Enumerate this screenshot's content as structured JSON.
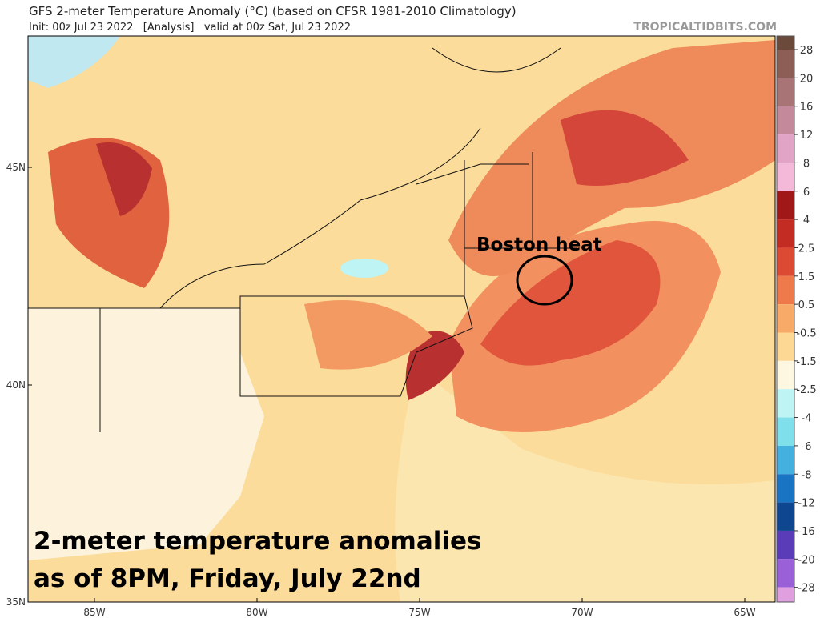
{
  "header": {
    "title": "GFS 2-meter Temperature Anomaly (°C) (based on CFSR 1981-2010 Climatology)",
    "init": "Init: 00z Jul 23 2022   [Analysis]   valid at 00z Sat, Jul 23 2022",
    "site": "TROPICALTIDBITS.COM"
  },
  "map": {
    "lat_labels": [
      "45N",
      "40N",
      "35N"
    ],
    "lon_labels": [
      "85W",
      "80W",
      "75W",
      "70W",
      "65W"
    ],
    "callout": "Boston heat",
    "caption": [
      "2-meter temperature anomalies",
      "as of 8PM, Friday, July 22nd"
    ]
  },
  "colorbar": {
    "labels": [
      "28",
      "20",
      "16",
      "12",
      "8",
      "6",
      "4",
      "2.5",
      "1.5",
      "0.5",
      "-0.5",
      "-1.5",
      "-2.5",
      "-4",
      "-6",
      "-8",
      "-12",
      "-16",
      "-20",
      "-28"
    ],
    "colors": [
      "#6b4a3c",
      "#8c5e55",
      "#a87476",
      "#c48a9c",
      "#e2a4c6",
      "#f4b8d8",
      "#a01818",
      "#c22c22",
      "#dc4a34",
      "#ee7a4c",
      "#f8aa68",
      "#fcd894",
      "#fdf6e0",
      "#bff4f4",
      "#7fe0ec",
      "#44b0e0",
      "#1a74c4",
      "#0e4690",
      "#5a3cb8",
      "#9a60d8",
      "#e0a0e0"
    ]
  }
}
